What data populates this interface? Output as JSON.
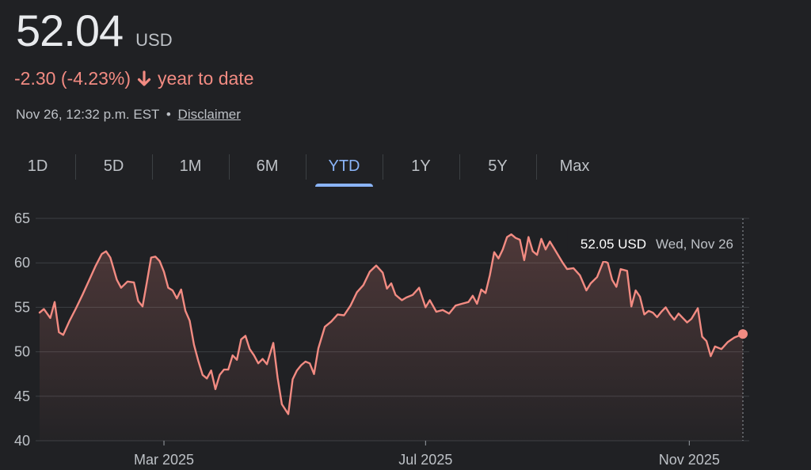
{
  "quote": {
    "price": "52.04",
    "currency": "USD",
    "change": "-2.30 (-4.23%)",
    "change_icon": "arrow-down-icon",
    "period": "year to date",
    "timestamp": "Nov 26, 12:32 p.m. EST",
    "separator": "•",
    "disclaimer": "Disclaimer"
  },
  "tabs": [
    {
      "label": "1D",
      "active": false
    },
    {
      "label": "5D",
      "active": false
    },
    {
      "label": "1M",
      "active": false
    },
    {
      "label": "6M",
      "active": false
    },
    {
      "label": "YTD",
      "active": true
    },
    {
      "label": "1Y",
      "active": false
    },
    {
      "label": "5Y",
      "active": false
    },
    {
      "label": "Max",
      "active": false
    }
  ],
  "tooltip": {
    "value": "52.05 USD",
    "date": "Wed, Nov 26"
  },
  "colors": {
    "background": "#202124",
    "line": "#f28b82",
    "active_tab": "#8ab4f8",
    "grid": "#3c4043"
  },
  "chart_data": {
    "type": "line",
    "ylim": [
      40,
      65
    ],
    "y_ticks": [
      "65",
      "60",
      "55",
      "50",
      "45",
      "40"
    ],
    "x_ticks": [
      "Mar 2025",
      "Jul 2025",
      "Nov 2025"
    ],
    "x_tick_dates": [
      "2025-03-01",
      "2025-07-01",
      "2025-11-01"
    ],
    "x_range": [
      "2025-01-02",
      "2025-11-26"
    ],
    "grid": true,
    "series": [
      {
        "points": [
          [
            "2025-01-02",
            54.4
          ],
          [
            "2025-01-04",
            54.8
          ],
          [
            "2025-01-07",
            53.8
          ],
          [
            "2025-01-09",
            55.6
          ],
          [
            "2025-01-11",
            52.2
          ],
          [
            "2025-01-13",
            51.9
          ],
          [
            "2025-01-16",
            53.5
          ],
          [
            "2025-01-19",
            54.9
          ],
          [
            "2025-01-22",
            56.4
          ],
          [
            "2025-01-25",
            58.0
          ],
          [
            "2025-01-28",
            59.6
          ],
          [
            "2025-01-31",
            61.0
          ],
          [
            "2025-02-02",
            61.3
          ],
          [
            "2025-02-04",
            60.6
          ],
          [
            "2025-02-07",
            58.1
          ],
          [
            "2025-02-09",
            57.2
          ],
          [
            "2025-02-12",
            57.9
          ],
          [
            "2025-02-15",
            57.8
          ],
          [
            "2025-02-17",
            55.7
          ],
          [
            "2025-02-19",
            55.1
          ],
          [
            "2025-02-21",
            57.8
          ],
          [
            "2025-02-23",
            60.6
          ],
          [
            "2025-02-25",
            60.7
          ],
          [
            "2025-02-27",
            60.2
          ],
          [
            "2025-03-01",
            59.0
          ],
          [
            "2025-03-03",
            57.2
          ],
          [
            "2025-03-05",
            56.9
          ],
          [
            "2025-03-07",
            56.0
          ],
          [
            "2025-03-09",
            57.0
          ],
          [
            "2025-03-11",
            54.6
          ],
          [
            "2025-03-13",
            53.5
          ],
          [
            "2025-03-15",
            50.8
          ],
          [
            "2025-03-17",
            49.0
          ],
          [
            "2025-03-19",
            47.4
          ],
          [
            "2025-03-21",
            47.0
          ],
          [
            "2025-03-23",
            47.9
          ],
          [
            "2025-03-25",
            45.8
          ],
          [
            "2025-03-27",
            47.4
          ],
          [
            "2025-03-29",
            48.0
          ],
          [
            "2025-03-31",
            48.0
          ],
          [
            "2025-04-02",
            49.6
          ],
          [
            "2025-04-04",
            49.1
          ],
          [
            "2025-04-06",
            51.4
          ],
          [
            "2025-04-08",
            51.8
          ],
          [
            "2025-04-10",
            50.3
          ],
          [
            "2025-04-12",
            49.6
          ],
          [
            "2025-04-14",
            48.7
          ],
          [
            "2025-04-16",
            49.2
          ],
          [
            "2025-04-18",
            48.6
          ],
          [
            "2025-04-21",
            51.0
          ],
          [
            "2025-04-23",
            47.1
          ],
          [
            "2025-04-25",
            44.1
          ],
          [
            "2025-04-28",
            43.0
          ],
          [
            "2025-04-30",
            46.9
          ],
          [
            "2025-05-02",
            47.9
          ],
          [
            "2025-05-04",
            48.5
          ],
          [
            "2025-05-06",
            48.9
          ],
          [
            "2025-05-08",
            48.7
          ],
          [
            "2025-05-10",
            47.5
          ],
          [
            "2025-05-12",
            50.4
          ],
          [
            "2025-05-15",
            52.8
          ],
          [
            "2025-05-18",
            53.4
          ],
          [
            "2025-05-21",
            54.2
          ],
          [
            "2025-05-24",
            54.1
          ],
          [
            "2025-05-27",
            55.2
          ],
          [
            "2025-05-30",
            56.7
          ],
          [
            "2025-06-02",
            57.5
          ],
          [
            "2025-06-05",
            59.0
          ],
          [
            "2025-06-08",
            59.7
          ],
          [
            "2025-06-11",
            58.9
          ],
          [
            "2025-06-13",
            57.1
          ],
          [
            "2025-06-15",
            57.7
          ],
          [
            "2025-06-17",
            56.4
          ],
          [
            "2025-06-20",
            55.8
          ],
          [
            "2025-06-22",
            56.1
          ],
          [
            "2025-06-25",
            56.4
          ],
          [
            "2025-06-28",
            57.2
          ],
          [
            "2025-07-01",
            55.0
          ],
          [
            "2025-07-03",
            55.8
          ],
          [
            "2025-07-06",
            54.5
          ],
          [
            "2025-07-09",
            54.7
          ],
          [
            "2025-07-12",
            54.3
          ],
          [
            "2025-07-15",
            55.2
          ],
          [
            "2025-07-18",
            55.4
          ],
          [
            "2025-07-21",
            55.6
          ],
          [
            "2025-07-23",
            56.3
          ],
          [
            "2025-07-25",
            55.4
          ],
          [
            "2025-07-27",
            57.0
          ],
          [
            "2025-07-29",
            56.6
          ],
          [
            "2025-07-31",
            58.6
          ],
          [
            "2025-08-02",
            61.2
          ],
          [
            "2025-08-04",
            60.5
          ],
          [
            "2025-08-06",
            61.5
          ],
          [
            "2025-08-08",
            62.9
          ],
          [
            "2025-08-10",
            63.2
          ],
          [
            "2025-08-12",
            62.8
          ],
          [
            "2025-08-14",
            62.6
          ],
          [
            "2025-08-16",
            60.3
          ],
          [
            "2025-08-18",
            62.9
          ],
          [
            "2025-08-20",
            61.3
          ],
          [
            "2025-08-22",
            60.9
          ],
          [
            "2025-08-24",
            62.7
          ],
          [
            "2025-08-26",
            61.5
          ],
          [
            "2025-08-28",
            62.4
          ],
          [
            "2025-08-30",
            61.6
          ],
          [
            "2025-09-01",
            60.8
          ],
          [
            "2025-09-03",
            60.0
          ],
          [
            "2025-09-05",
            59.3
          ],
          [
            "2025-09-08",
            59.4
          ],
          [
            "2025-09-11",
            58.6
          ],
          [
            "2025-09-14",
            56.9
          ],
          [
            "2025-09-16",
            57.7
          ],
          [
            "2025-09-19",
            58.4
          ],
          [
            "2025-09-22",
            60.2
          ],
          [
            "2025-09-24",
            60.0
          ],
          [
            "2025-09-26",
            58.1
          ],
          [
            "2025-09-28",
            57.3
          ],
          [
            "2025-09-30",
            59.3
          ],
          [
            "2025-10-03",
            59.1
          ],
          [
            "2025-10-05",
            55.1
          ],
          [
            "2025-10-07",
            56.9
          ],
          [
            "2025-10-09",
            56.2
          ],
          [
            "2025-10-11",
            54.2
          ],
          [
            "2025-10-13",
            54.6
          ],
          [
            "2025-10-15",
            54.4
          ],
          [
            "2025-10-17",
            53.9
          ],
          [
            "2025-10-19",
            54.5
          ],
          [
            "2025-10-21",
            55.0
          ],
          [
            "2025-10-23",
            54.2
          ],
          [
            "2025-10-25",
            53.6
          ],
          [
            "2025-10-27",
            54.3
          ],
          [
            "2025-10-29",
            53.8
          ],
          [
            "2025-10-31",
            53.3
          ],
          [
            "2025-11-02",
            53.7
          ],
          [
            "2025-11-05",
            54.9
          ],
          [
            "2025-11-07",
            51.7
          ],
          [
            "2025-11-09",
            51.2
          ],
          [
            "2025-11-11",
            49.5
          ],
          [
            "2025-11-13",
            50.6
          ],
          [
            "2025-11-16",
            50.3
          ],
          [
            "2025-11-19",
            51.1
          ],
          [
            "2025-11-22",
            51.6
          ],
          [
            "2025-11-26",
            52.0
          ]
        ]
      }
    ]
  }
}
